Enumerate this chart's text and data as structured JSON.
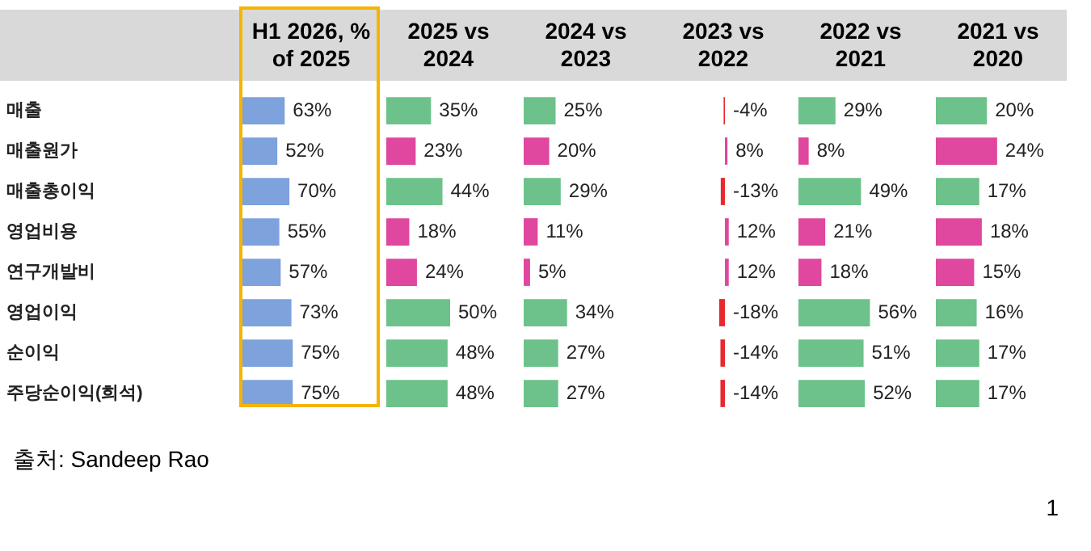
{
  "chart_data": [
    {
      "type": "bar",
      "orientation": "horizontal",
      "title": "H1 2026, % of 2025",
      "categories": [
        "매출",
        "매출원가",
        "매출총이익",
        "영업비용",
        "연구개발비",
        "영업이익",
        "순이익",
        "주당순이익(희석)"
      ],
      "values": [
        63,
        52,
        70,
        55,
        57,
        73,
        75,
        75
      ],
      "value_labels": [
        "63%",
        "52%",
        "70%",
        "55%",
        "57%",
        "73%",
        "75%",
        "75%"
      ],
      "colors": [
        "#7da2dc",
        "#7da2dc",
        "#7da2dc",
        "#7da2dc",
        "#7da2dc",
        "#7da2dc",
        "#7da2dc",
        "#7da2dc"
      ],
      "tick_labels": "y",
      "grid": false,
      "legend": false,
      "annotations": [
        "출처: Sandeep Rao",
        "1"
      ]
    },
    {
      "type": "bar",
      "orientation": "horizontal",
      "title": "2025 vs 2024",
      "categories": [
        null,
        null,
        null,
        null,
        null,
        null,
        null,
        null
      ],
      "values": [
        35,
        23,
        44,
        18,
        24,
        50,
        48,
        48
      ],
      "value_labels": [
        "35%",
        "23%",
        "44%",
        "18%",
        "24%",
        "50%",
        "48%",
        "48%"
      ],
      "colors": [
        "#6cc28a",
        "#e0479e",
        "#6cc28a",
        "#e0479e",
        "#e0479e",
        "#6cc28a",
        "#6cc28a",
        "#6cc28a"
      ],
      "tick_labels": false,
      "grid": false,
      "legend": false
    },
    {
      "type": "bar",
      "orientation": "horizontal",
      "title": "2024 vs 2023",
      "categories": [
        null,
        null,
        null,
        null,
        null,
        null,
        null,
        null
      ],
      "values": [
        25,
        20,
        29,
        11,
        5,
        34,
        27,
        27
      ],
      "value_labels": [
        "25%",
        "20%",
        "29%",
        "11%",
        "5%",
        "34%",
        "27%",
        "27%"
      ],
      "colors": [
        "#6cc28a",
        "#e0479e",
        "#6cc28a",
        "#e0479e",
        "#e0479e",
        "#6cc28a",
        "#6cc28a",
        "#6cc28a"
      ],
      "tick_labels": false,
      "grid": false,
      "legend": false
    },
    {
      "type": "bar",
      "orientation": "horizontal",
      "title": "2023 vs 2022",
      "categories": [
        null,
        null,
        null,
        null,
        null,
        null,
        null,
        null
      ],
      "values": [
        -4,
        8,
        -13,
        12,
        12,
        -18,
        -14,
        -14
      ],
      "value_labels": [
        "-4%",
        "8%",
        "-13%",
        "12%",
        "12%",
        "-18%",
        "-14%",
        "-14%"
      ],
      "colors": [
        "#e8282f",
        "#e0479e",
        "#e8282f",
        "#e0479e",
        "#e0479e",
        "#e8282f",
        "#e8282f",
        "#e8282f"
      ],
      "tick_labels": false,
      "grid": false,
      "legend": false
    },
    {
      "type": "bar",
      "orientation": "horizontal",
      "title": "2022 vs 2021",
      "categories": [
        null,
        null,
        null,
        null,
        null,
        null,
        null,
        null
      ],
      "values": [
        29,
        8,
        49,
        21,
        18,
        56,
        51,
        52
      ],
      "value_labels": [
        "29%",
        "8%",
        "49%",
        "21%",
        "18%",
        "56%",
        "51%",
        "52%"
      ],
      "colors": [
        "#6cc28a",
        "#e0479e",
        "#6cc28a",
        "#e0479e",
        "#e0479e",
        "#6cc28a",
        "#6cc28a",
        "#6cc28a"
      ],
      "tick_labels": false,
      "grid": false,
      "legend": false
    },
    {
      "type": "bar",
      "orientation": "horizontal",
      "title": "2021 vs 2020",
      "categories": [
        null,
        null,
        null,
        null,
        null,
        null,
        null,
        null
      ],
      "values": [
        20,
        24,
        17,
        18,
        15,
        16,
        17,
        17
      ],
      "value_labels": [
        "20%",
        "24%",
        "17%",
        "18%",
        "15%",
        "16%",
        "17%",
        "17%"
      ],
      "colors": [
        "#6cc28a",
        "#e0479e",
        "#6cc28a",
        "#e0479e",
        "#e0479e",
        "#6cc28a",
        "#6cc28a",
        "#6cc28a"
      ],
      "tick_labels": false,
      "grid": false,
      "legend": false
    }
  ]
}
